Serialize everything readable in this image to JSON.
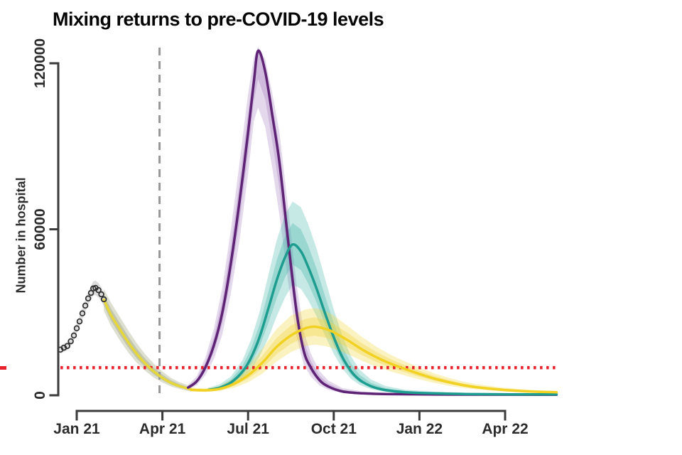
{
  "chart_data": {
    "type": "line",
    "title": "Mixing returns to pre-COVID-19 levels",
    "ylabel": "Number in hospital",
    "x_unit": "months since Jan 2021",
    "xlim": [
      -0.57,
      16.8
    ],
    "ylim": [
      0,
      125500
    ],
    "grid": "off",
    "legend": "none",
    "axis_color": "#3b3b3b",
    "tick_label_color": "#2c2c2c",
    "x_ticks": [
      {
        "m": 0,
        "label": "Jan 21"
      },
      {
        "m": 3,
        "label": "Apr 21"
      },
      {
        "m": 6,
        "label": "Jul 21"
      },
      {
        "m": 9,
        "label": "Oct 21"
      },
      {
        "m": 12,
        "label": "Jan 22"
      },
      {
        "m": 15,
        "label": "Apr 22"
      }
    ],
    "y_ticks": [
      {
        "v": 0,
        "label": "0"
      },
      {
        "v": 60000,
        "label": "60000"
      },
      {
        "v": 120000,
        "label": "120000"
      }
    ],
    "reference_lines": {
      "threshold_horizontal": {
        "style": "dotted",
        "value": 10000,
        "color": "#e9212d"
      },
      "scenario_start_vertical": {
        "style": "dashed",
        "month": 2.9,
        "color": "#979797"
      }
    },
    "observed": {
      "name": "observed-hospital-data",
      "marker": "open-circle",
      "color": "#2e2e2e",
      "band_color": "#bcbcbc",
      "x": [
        -0.57,
        -0.45,
        -0.33,
        -0.21,
        -0.1,
        0.0,
        0.1,
        0.2,
        0.3,
        0.4,
        0.5,
        0.58,
        0.66,
        0.76,
        0.86,
        0.95
      ],
      "y": [
        16500,
        17200,
        17800,
        19500,
        21600,
        24200,
        26700,
        29600,
        32400,
        35000,
        37000,
        38600,
        38800,
        38000,
        36500,
        34700
      ],
      "hi": [
        18000,
        18700,
        19300,
        21100,
        23300,
        26000,
        28700,
        31700,
        34600,
        37400,
        39500,
        41200,
        41400,
        40600,
        39000,
        37200
      ],
      "lo": [
        15000,
        15700,
        16300,
        17900,
        19900,
        22400,
        24700,
        27500,
        30200,
        32600,
        34500,
        36000,
        36200,
        35400,
        34000,
        32200
      ]
    },
    "series": [
      {
        "name": "model-fit-decline",
        "color": "#e5d63a",
        "band_color": "#8f9464",
        "x": [
          0.95,
          1.2,
          1.5,
          1.8,
          2.1,
          2.4,
          2.7,
          3.0,
          3.3,
          3.6,
          4.0
        ],
        "y": [
          34500,
          29000,
          24000,
          19200,
          15000,
          11500,
          8600,
          6300,
          4500,
          3300,
          2100
        ],
        "hi": [
          38500,
          33500,
          28500,
          23500,
          18800,
          14800,
          11400,
          8600,
          6300,
          4700,
          3200
        ],
        "lo": [
          30500,
          25000,
          20000,
          15500,
          11800,
          8800,
          6400,
          4600,
          3200,
          2300,
          1300
        ]
      },
      {
        "name": "purple-scenario",
        "color": "#5e2374",
        "band_color": "#a77fc0",
        "x": [
          3.9,
          4.2,
          4.5,
          4.8,
          5.1,
          5.4,
          5.7,
          6.0,
          6.2,
          6.35,
          6.6,
          6.85,
          7.1,
          7.4,
          7.7,
          7.95,
          8.2,
          8.5,
          8.8,
          9.3,
          10,
          11,
          13,
          16.8
        ],
        "y": [
          2800,
          5000,
          10000,
          18000,
          30000,
          48000,
          70000,
          95000,
          113000,
          124500,
          117000,
          101000,
          84000,
          56000,
          30000,
          16000,
          10000,
          5500,
          3200,
          1400,
          700,
          400,
          250,
          200
        ],
        "hi": [
          3800,
          6800,
          13500,
          24000,
          39000,
          60000,
          84000,
          109000,
          122000,
          126000,
          121500,
          109000,
          95000,
          68000,
          40000,
          23000,
          15000,
          8800,
          5400,
          2600,
          1400,
          800,
          500,
          400
        ],
        "lo": [
          2000,
          3600,
          7200,
          13000,
          22000,
          37000,
          56000,
          80000,
          99000,
          104000,
          97000,
          82000,
          65000,
          41000,
          21000,
          11000,
          6700,
          3600,
          2000,
          800,
          400,
          220,
          130,
          100
        ]
      },
      {
        "name": "teal-scenario",
        "color": "#1d9d8f",
        "band_color": "#45b5a9",
        "x": [
          4.6,
          5.0,
          5.4,
          5.8,
          6.1,
          6.4,
          6.7,
          7.0,
          7.3,
          7.56,
          7.85,
          8.1,
          8.4,
          8.7,
          9.0,
          9.3,
          9.6,
          9.9,
          10.3,
          10.8,
          11.5,
          12.5,
          14,
          16.8
        ],
        "y": [
          1900,
          2700,
          4600,
          8500,
          13500,
          21000,
          31000,
          41500,
          50000,
          54500,
          52000,
          46500,
          38500,
          29500,
          21000,
          13800,
          8800,
          5600,
          3300,
          1900,
          1100,
          700,
          400,
          300
        ],
        "hi": [
          2700,
          3900,
          6800,
          12600,
          20000,
          30000,
          43000,
          56000,
          65500,
          70000,
          68000,
          62000,
          53000,
          42000,
          31000,
          21500,
          14200,
          9300,
          5700,
          3400,
          2000,
          1300,
          800,
          600
        ],
        "lo": [
          1300,
          1850,
          3100,
          5700,
          9000,
          14000,
          20500,
          28500,
          35500,
          40000,
          38500,
          34500,
          28500,
          21500,
          15000,
          9600,
          6000,
          3800,
          2200,
          1250,
          700,
          420,
          230,
          160
        ]
      },
      {
        "name": "yellow-scenario",
        "color": "#f1d122",
        "band_color": "#f2d335",
        "x": [
          4.0,
          4.5,
          5.0,
          5.5,
          6.0,
          6.5,
          7.0,
          7.5,
          8.0,
          8.33,
          8.7,
          9.0,
          9.5,
          10.0,
          10.5,
          11.0,
          11.5,
          12.0,
          12.5,
          13.0,
          13.5,
          14.0,
          15.0,
          16.0,
          16.8
        ],
        "y": [
          2000,
          1800,
          2300,
          4100,
          7200,
          11800,
          17500,
          21600,
          24200,
          24800,
          24000,
          22800,
          19800,
          16500,
          13700,
          11400,
          9500,
          7700,
          6100,
          4800,
          3700,
          2900,
          1900,
          1300,
          1100
        ],
        "hi": [
          2800,
          2500,
          3300,
          6000,
          10500,
          16800,
          24000,
          28800,
          31000,
          31500,
          30500,
          28800,
          25000,
          21000,
          17500,
          14600,
          12200,
          10000,
          8000,
          6400,
          5000,
          4000,
          2700,
          1900,
          1600
        ],
        "lo": [
          1300,
          1200,
          1550,
          2700,
          4700,
          7800,
          12200,
          15600,
          17800,
          18300,
          17800,
          16900,
          14800,
          12400,
          10300,
          8600,
          7100,
          5700,
          4500,
          3500,
          2700,
          2100,
          1300,
          850,
          700
        ]
      }
    ]
  }
}
